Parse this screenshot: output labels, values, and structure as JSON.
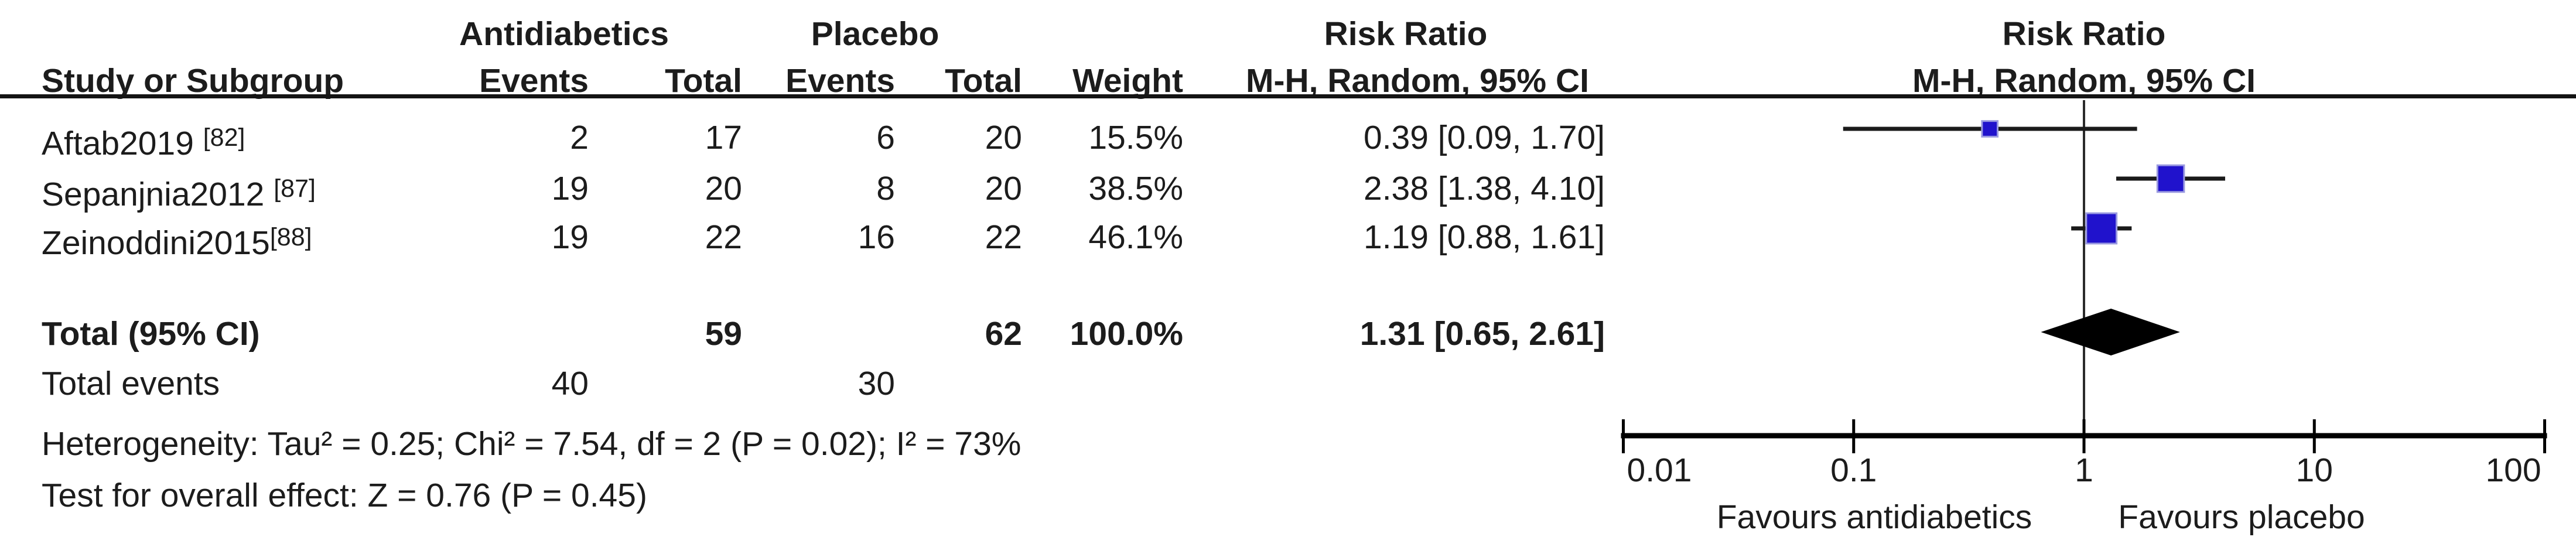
{
  "table": {
    "group_headers": {
      "treatment": "Antidiabetics",
      "control": "Placebo",
      "effect_table": "Risk Ratio",
      "effect_plot": "Risk Ratio"
    },
    "column_headers": {
      "study": "Study or Subgroup",
      "events_treatment": "Events",
      "total_treatment": "Total",
      "events_control": "Events",
      "total_control": "Total",
      "weight": "Weight",
      "method_table": "M-H, Random, 95% CI",
      "method_plot": "M-H, Random, 95% CI"
    },
    "rows": [
      {
        "study": "Aftab2019 ",
        "ref": "[82]",
        "events_treatment": "2",
        "total_treatment": "17",
        "events_control": "6",
        "total_control": "20",
        "weight": "15.5%",
        "estimate": "0.39 [0.09, 1.70]"
      },
      {
        "study": "Sepanjnia2012 ",
        "ref": "[87]",
        "events_treatment": "19",
        "total_treatment": "20",
        "events_control": "8",
        "total_control": "20",
        "weight": "38.5%",
        "estimate": "2.38 [1.38, 4.10]"
      },
      {
        "study": "Zeinoddini2015",
        "ref": "[88]",
        "events_treatment": "19",
        "total_treatment": "22",
        "events_control": "16",
        "total_control": "22",
        "weight": "46.1%",
        "estimate": "1.19 [0.88, 1.61]"
      }
    ],
    "total_row": {
      "label": "Total (95% CI)",
      "total_treatment": "59",
      "total_control": "62",
      "weight": "100.0%",
      "estimate": "1.31 [0.65, 2.61]"
    },
    "total_events_row": {
      "label": "Total events",
      "events_treatment": "40",
      "events_control": "30"
    },
    "heterogeneity": "Heterogeneity: Tau² = 0.25; Chi² = 7.54, df = 2 (P = 0.02); I² = 73%",
    "overall_effect": "Test for overall effect: Z = 0.76 (P = 0.45)"
  },
  "chart_data": {
    "type": "scatter",
    "subtype": "forest-plot",
    "title": "Risk Ratio",
    "method": "M-H, Random, 95% CI",
    "x_scale": "log10",
    "x_range": [
      0.01,
      100
    ],
    "x_ticks": [
      0.01,
      0.1,
      1,
      10,
      100
    ],
    "null_line": 1,
    "studies": [
      {
        "label": "Aftab2019 [82]",
        "rr": 0.39,
        "ci_low": 0.09,
        "ci_high": 1.7,
        "weight_pct": 15.5
      },
      {
        "label": "Sepanjnia2012 [87]",
        "rr": 2.38,
        "ci_low": 1.38,
        "ci_high": 4.1,
        "weight_pct": 38.5
      },
      {
        "label": "Zeinoddini2015[88]",
        "rr": 1.19,
        "ci_low": 0.88,
        "ci_high": 1.61,
        "weight_pct": 46.1
      }
    ],
    "total": {
      "label": "Total (95% CI)",
      "rr": 1.31,
      "ci_low": 0.65,
      "ci_high": 2.61,
      "weight_pct": 100.0
    },
    "x_axis_left_label": "Favours antidiabetics",
    "x_axis_right_label": "Favours placebo",
    "marker_color": "#2012CC",
    "marker_halo_color": "#9a9ae0",
    "diamond_color": "#000000",
    "line_color": "#1a1a1a"
  }
}
